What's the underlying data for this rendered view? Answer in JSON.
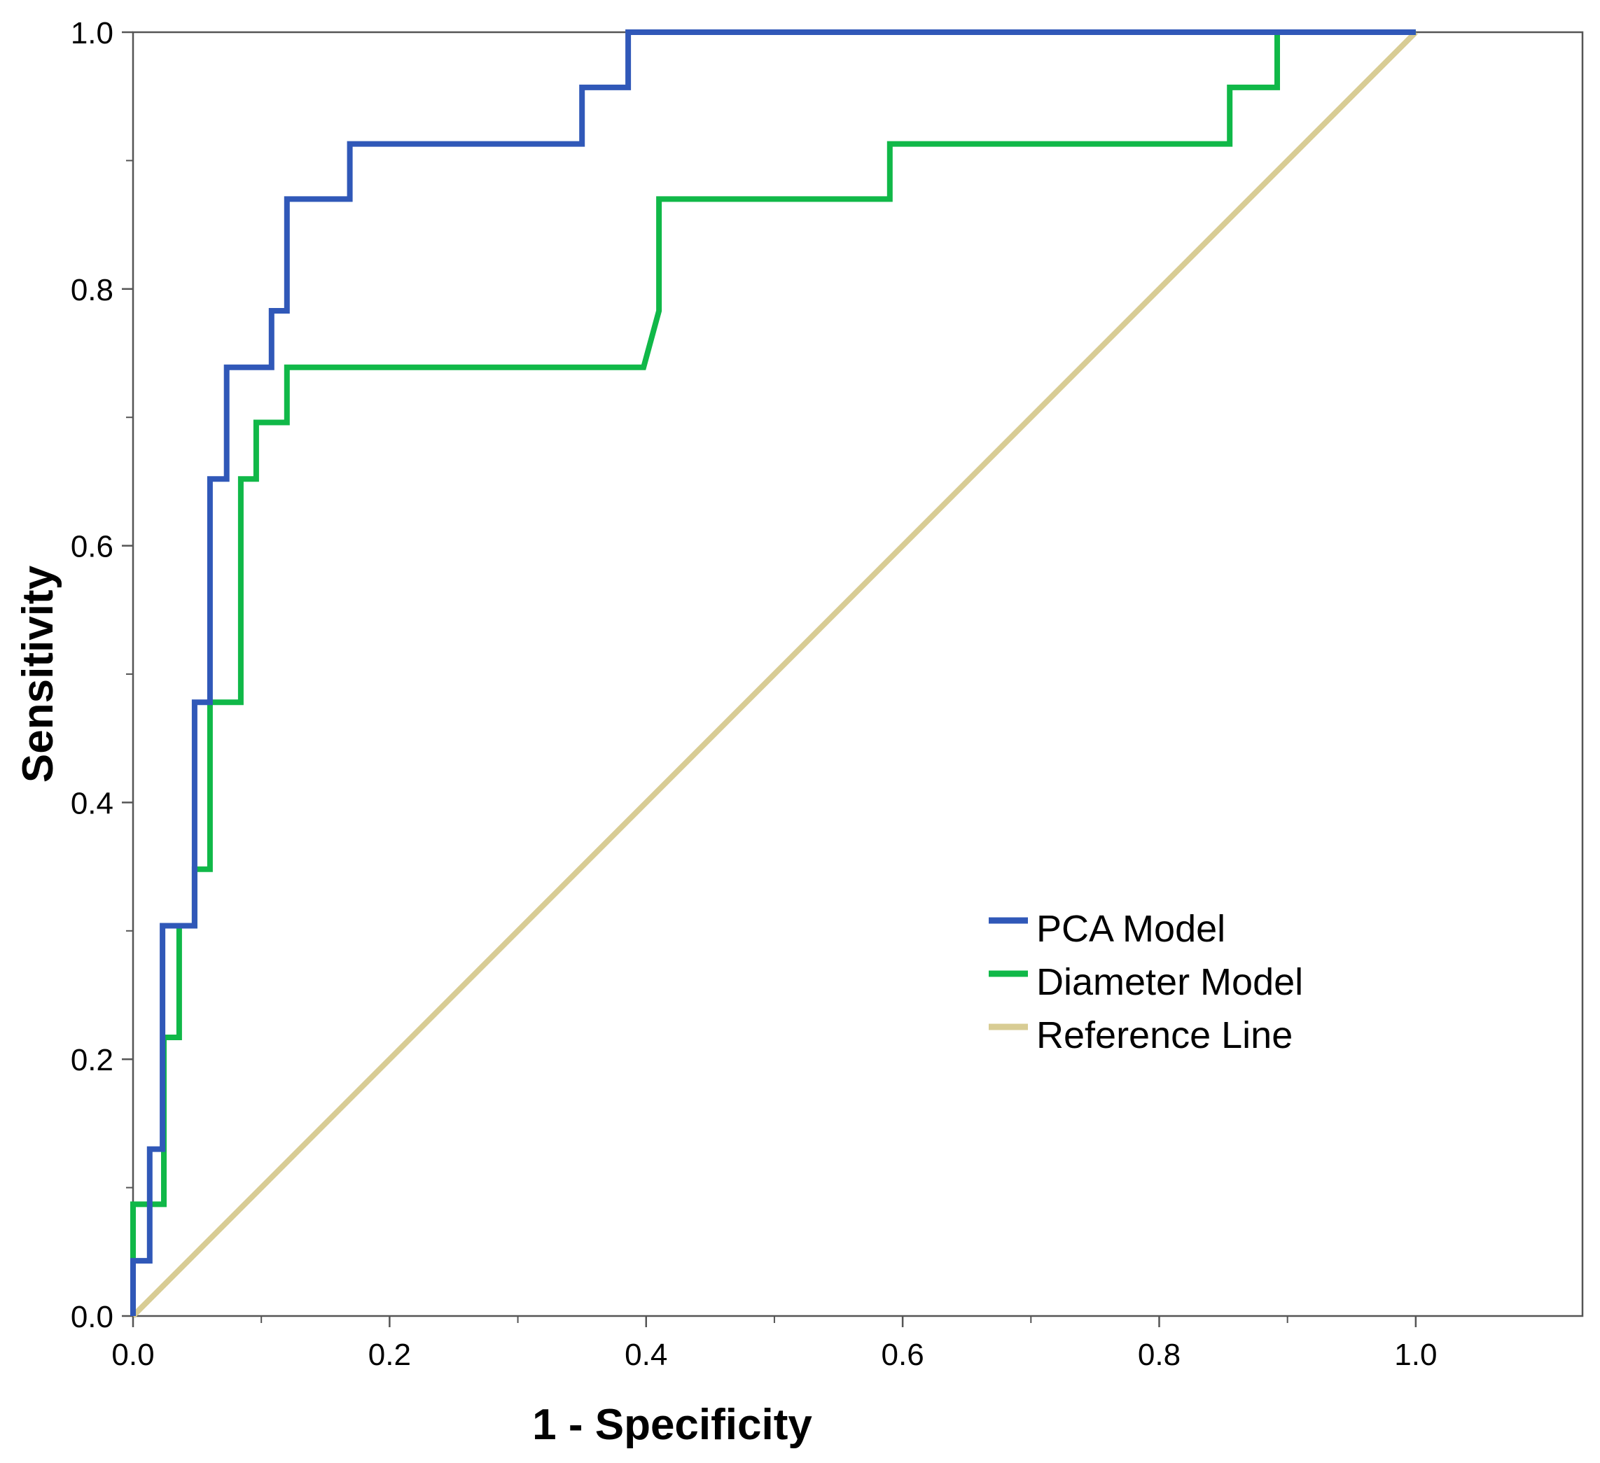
{
  "chart_data": {
    "type": "line",
    "title": "",
    "xlabel": "1 - Specificity",
    "ylabel": "Sensitivity",
    "xlim": [
      0,
      1.13
    ],
    "ylim": [
      0,
      1.0
    ],
    "x_ticks": [
      0.0,
      0.2,
      0.4,
      0.6,
      0.8,
      1.0
    ],
    "x_tick_labels": [
      "0.0",
      "0.2",
      "0.4",
      "0.6",
      "0.8",
      "1.0"
    ],
    "x_minor_ticks": [
      0.1,
      0.3,
      0.5,
      0.7,
      0.9
    ],
    "y_ticks": [
      0.0,
      0.2,
      0.4,
      0.6,
      0.8,
      1.0
    ],
    "y_tick_labels": [
      "0.0",
      "0.2",
      "0.4",
      "0.6",
      "0.8",
      "1.0"
    ],
    "y_minor_ticks": [
      0.1,
      0.3,
      0.5,
      0.7,
      0.9
    ],
    "grid": false,
    "legend_position": "center-right",
    "series": [
      {
        "name": "PCA Model",
        "color": "#3058b8",
        "x": [
          0,
          0,
          0.013,
          0.013,
          0.023,
          0.023,
          0.048,
          0.048,
          0.06,
          0.06,
          0.073,
          0.073,
          0.108,
          0.108,
          0.12,
          0.12,
          0.169,
          0.169,
          0.35,
          0.35,
          0.386,
          0.386,
          1.0
        ],
        "y": [
          0,
          0.043,
          0.043,
          0.13,
          0.13,
          0.304,
          0.304,
          0.478,
          0.478,
          0.652,
          0.652,
          0.739,
          0.739,
          0.783,
          0.783,
          0.87,
          0.87,
          0.913,
          0.913,
          0.957,
          0.957,
          1.0,
          1.0
        ]
      },
      {
        "name": "Diameter Model",
        "color": "#10b848",
        "x": [
          0,
          0,
          0.024,
          0.024,
          0.036,
          0.036,
          0.048,
          0.048,
          0.06,
          0.06,
          0.084,
          0.084,
          0.096,
          0.096,
          0.12,
          0.12,
          0.398,
          0.41,
          0.41,
          0.59,
          0.59,
          0.855,
          0.855,
          0.892,
          0.892,
          1.0
        ],
        "y": [
          0,
          0.087,
          0.087,
          0.217,
          0.217,
          0.304,
          0.304,
          0.348,
          0.348,
          0.478,
          0.478,
          0.652,
          0.652,
          0.696,
          0.696,
          0.739,
          0.739,
          0.783,
          0.87,
          0.87,
          0.913,
          0.913,
          0.957,
          0.957,
          1.0,
          1.0
        ]
      },
      {
        "name": "Reference Line",
        "color": "#d8cc94",
        "x": [
          0,
          1.0
        ],
        "y": [
          0,
          1.0
        ]
      }
    ]
  }
}
